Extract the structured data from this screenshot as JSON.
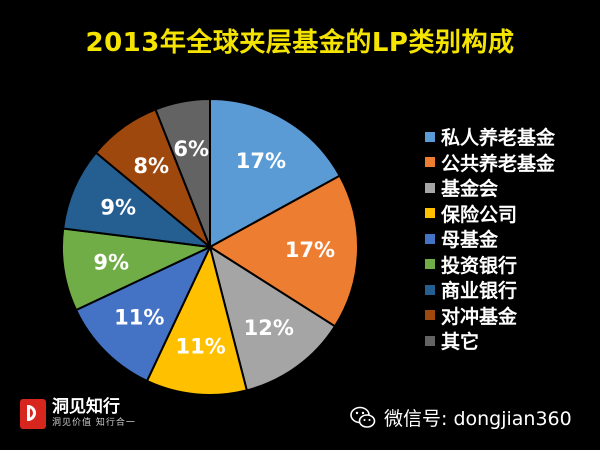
{
  "chart_data": {
    "type": "pie",
    "title": "2013年全球夹层基金的LP类别构成",
    "slices": [
      {
        "label": "私人养老基金",
        "value": 17,
        "display": "17%",
        "color": "#5b9bd5"
      },
      {
        "label": "公共养老基金",
        "value": 17,
        "display": "17%",
        "color": "#ed7d31"
      },
      {
        "label": "基金会",
        "value": 12,
        "display": "12%",
        "color": "#a5a5a5"
      },
      {
        "label": "保险公司",
        "value": 11,
        "display": "11%",
        "color": "#ffc000"
      },
      {
        "label": "母基金",
        "value": 11,
        "display": "11%",
        "color": "#4472c4"
      },
      {
        "label": "投资银行",
        "value": 9,
        "display": "9%",
        "color": "#70ad47"
      },
      {
        "label": "商业银行",
        "value": 9,
        "display": "9%",
        "color": "#255e91"
      },
      {
        "label": "对冲基金",
        "value": 8,
        "display": "8%",
        "color": "#9e480e"
      },
      {
        "label": "其它",
        "value": 6,
        "display": "6%",
        "color": "#636363"
      }
    ],
    "legend_position": "right"
  },
  "footer": {
    "logo_name": "洞见知行",
    "logo_slogan": "洞见价值  知行合一",
    "wechat_text": "微信号: dongjian360"
  }
}
